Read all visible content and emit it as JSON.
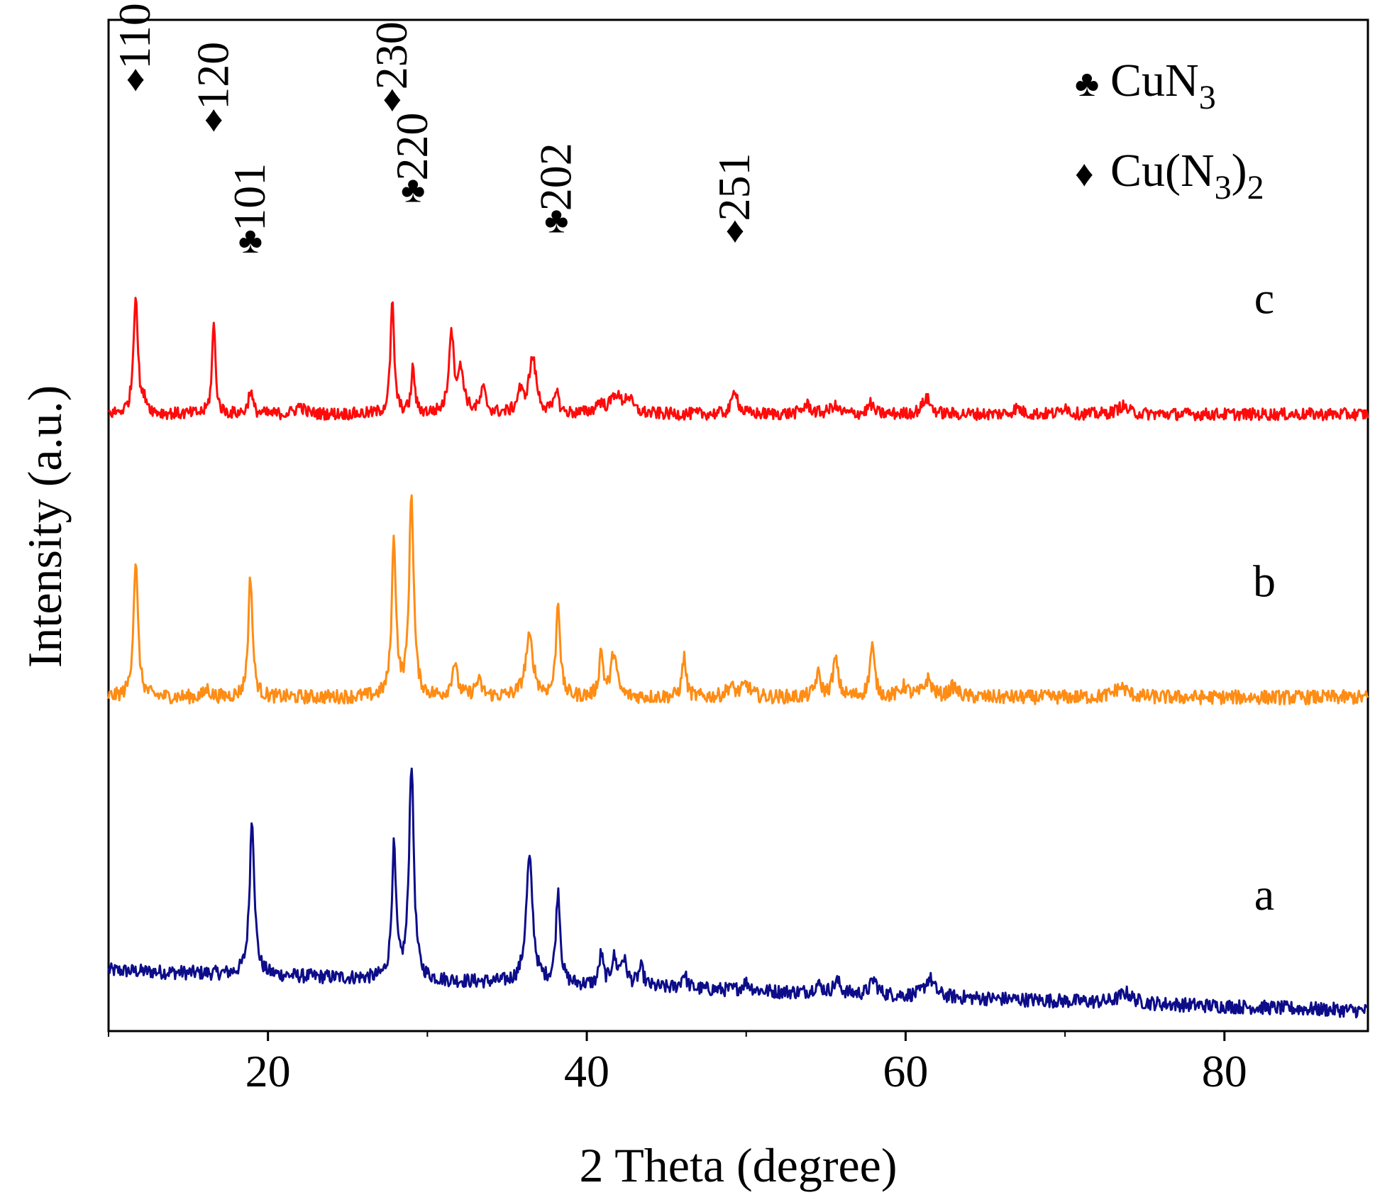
{
  "chart_data": {
    "type": "line",
    "title": "",
    "xlabel": "2 Theta (degree)",
    "ylabel": "Intensity (a.u.)",
    "xlim": [
      10,
      89
    ],
    "ylim": [
      0,
      100
    ],
    "xticks": [
      20,
      40,
      60,
      80
    ],
    "grid": false,
    "legend": {
      "position": "top-right",
      "entries": [
        {
          "symbol": "♣",
          "text": "CuN",
          "sub": "3",
          "after": "",
          "after_sub": ""
        },
        {
          "symbol": "♦",
          "text": "Cu(N",
          "sub": "3",
          "after": ")",
          "after_sub": "2"
        }
      ]
    },
    "series": [
      {
        "name": "a",
        "color": "#0d0d8a",
        "baseline": 6,
        "baseline_end": 2,
        "noise": 0.7,
        "peaks": [
          {
            "x": 19.0,
            "h": 15.5,
            "w": 0.18
          },
          {
            "x": 27.9,
            "h": 12.8,
            "w": 0.16
          },
          {
            "x": 29.0,
            "h": 21.3,
            "w": 0.18
          },
          {
            "x": 36.4,
            "h": 12.3,
            "w": 0.25
          },
          {
            "x": 38.2,
            "h": 9.2,
            "w": 0.16
          },
          {
            "x": 40.9,
            "h": 3.0,
            "w": 0.15
          },
          {
            "x": 41.7,
            "h": 2.5,
            "w": 0.2
          },
          {
            "x": 42.3,
            "h": 2.5,
            "w": 0.25
          },
          {
            "x": 43.4,
            "h": 1.8,
            "w": 0.2
          },
          {
            "x": 46.1,
            "h": 1.5,
            "w": 0.2
          },
          {
            "x": 50.0,
            "h": 0.8,
            "w": 0.3
          },
          {
            "x": 54.5,
            "h": 0.8,
            "w": 0.3
          },
          {
            "x": 55.7,
            "h": 1.2,
            "w": 0.25
          },
          {
            "x": 58.0,
            "h": 1.5,
            "w": 0.25
          },
          {
            "x": 61.5,
            "h": 1.8,
            "w": 0.35
          },
          {
            "x": 73.8,
            "h": 1.0,
            "w": 0.5
          }
        ]
      },
      {
        "name": "b",
        "color": "#ff8c14",
        "baseline": 33,
        "baseline_end": 33,
        "noise": 0.7,
        "peaks": [
          {
            "x": 11.7,
            "h": 13.5,
            "w": 0.17
          },
          {
            "x": 16.2,
            "h": 0.8,
            "w": 0.2
          },
          {
            "x": 18.9,
            "h": 12.0,
            "w": 0.16
          },
          {
            "x": 27.9,
            "h": 15.5,
            "w": 0.16
          },
          {
            "x": 29.0,
            "h": 20.0,
            "w": 0.17
          },
          {
            "x": 31.7,
            "h": 3.3,
            "w": 0.2
          },
          {
            "x": 33.2,
            "h": 1.5,
            "w": 0.25
          },
          {
            "x": 36.4,
            "h": 5.8,
            "w": 0.3
          },
          {
            "x": 38.2,
            "h": 9.5,
            "w": 0.15
          },
          {
            "x": 40.9,
            "h": 4.5,
            "w": 0.15
          },
          {
            "x": 41.7,
            "h": 4.5,
            "w": 0.2
          },
          {
            "x": 46.1,
            "h": 4.0,
            "w": 0.15
          },
          {
            "x": 49.0,
            "h": 1.0,
            "w": 0.3
          },
          {
            "x": 50.0,
            "h": 1.2,
            "w": 0.3
          },
          {
            "x": 54.5,
            "h": 2.2,
            "w": 0.2
          },
          {
            "x": 55.6,
            "h": 3.7,
            "w": 0.2
          },
          {
            "x": 57.9,
            "h": 5.0,
            "w": 0.18
          },
          {
            "x": 59.9,
            "h": 1.0,
            "w": 0.3
          },
          {
            "x": 61.4,
            "h": 1.7,
            "w": 0.3
          },
          {
            "x": 63.0,
            "h": 1.0,
            "w": 0.3
          },
          {
            "x": 73.5,
            "h": 1.0,
            "w": 0.5
          }
        ]
      },
      {
        "name": "c",
        "color": "#ff0a0a",
        "baseline": 61,
        "baseline_end": 61,
        "noise": 0.6,
        "peaks": [
          {
            "x": 11.7,
            "h": 12.0,
            "w": 0.16
          },
          {
            "x": 12.3,
            "h": 1.0,
            "w": 0.2
          },
          {
            "x": 16.6,
            "h": 9.0,
            "w": 0.13
          },
          {
            "x": 18.9,
            "h": 2.4,
            "w": 0.15
          },
          {
            "x": 22.0,
            "h": 0.8,
            "w": 0.3
          },
          {
            "x": 27.8,
            "h": 11.0,
            "w": 0.14
          },
          {
            "x": 29.1,
            "h": 4.5,
            "w": 0.13
          },
          {
            "x": 31.5,
            "h": 8.0,
            "w": 0.18
          },
          {
            "x": 32.1,
            "h": 4.0,
            "w": 0.25
          },
          {
            "x": 33.5,
            "h": 2.3,
            "w": 0.2
          },
          {
            "x": 35.8,
            "h": 2.0,
            "w": 0.2
          },
          {
            "x": 36.6,
            "h": 5.5,
            "w": 0.28
          },
          {
            "x": 38.1,
            "h": 2.5,
            "w": 0.13
          },
          {
            "x": 40.8,
            "h": 1.0,
            "w": 0.3
          },
          {
            "x": 41.8,
            "h": 1.8,
            "w": 0.35
          },
          {
            "x": 42.6,
            "h": 1.5,
            "w": 0.3
          },
          {
            "x": 49.3,
            "h": 2.5,
            "w": 0.2
          },
          {
            "x": 53.8,
            "h": 0.9,
            "w": 0.3
          },
          {
            "x": 55.5,
            "h": 0.8,
            "w": 0.3
          },
          {
            "x": 57.8,
            "h": 1.0,
            "w": 0.2
          },
          {
            "x": 61.3,
            "h": 1.6,
            "w": 0.3
          },
          {
            "x": 67.0,
            "h": 0.6,
            "w": 0.3
          },
          {
            "x": 70.0,
            "h": 0.9,
            "w": 0.2
          },
          {
            "x": 73.6,
            "h": 0.8,
            "w": 0.4
          }
        ]
      }
    ],
    "peak_annotations": [
      {
        "x": 11.7,
        "y": 93,
        "marker": "♦",
        "hkl": "110"
      },
      {
        "x": 16.6,
        "y": 89,
        "marker": "♦",
        "hkl": "120"
      },
      {
        "x": 18.9,
        "y": 77,
        "marker": "♣",
        "hkl": "101"
      },
      {
        "x": 27.8,
        "y": 91,
        "marker": "♦",
        "hkl": "230"
      },
      {
        "x": 29.1,
        "y": 82,
        "marker": "♣",
        "hkl": "220"
      },
      {
        "x": 38.1,
        "y": 79,
        "marker": "♣",
        "hkl": "202"
      },
      {
        "x": 49.3,
        "y": 78,
        "marker": "♦",
        "hkl": "251"
      }
    ]
  }
}
